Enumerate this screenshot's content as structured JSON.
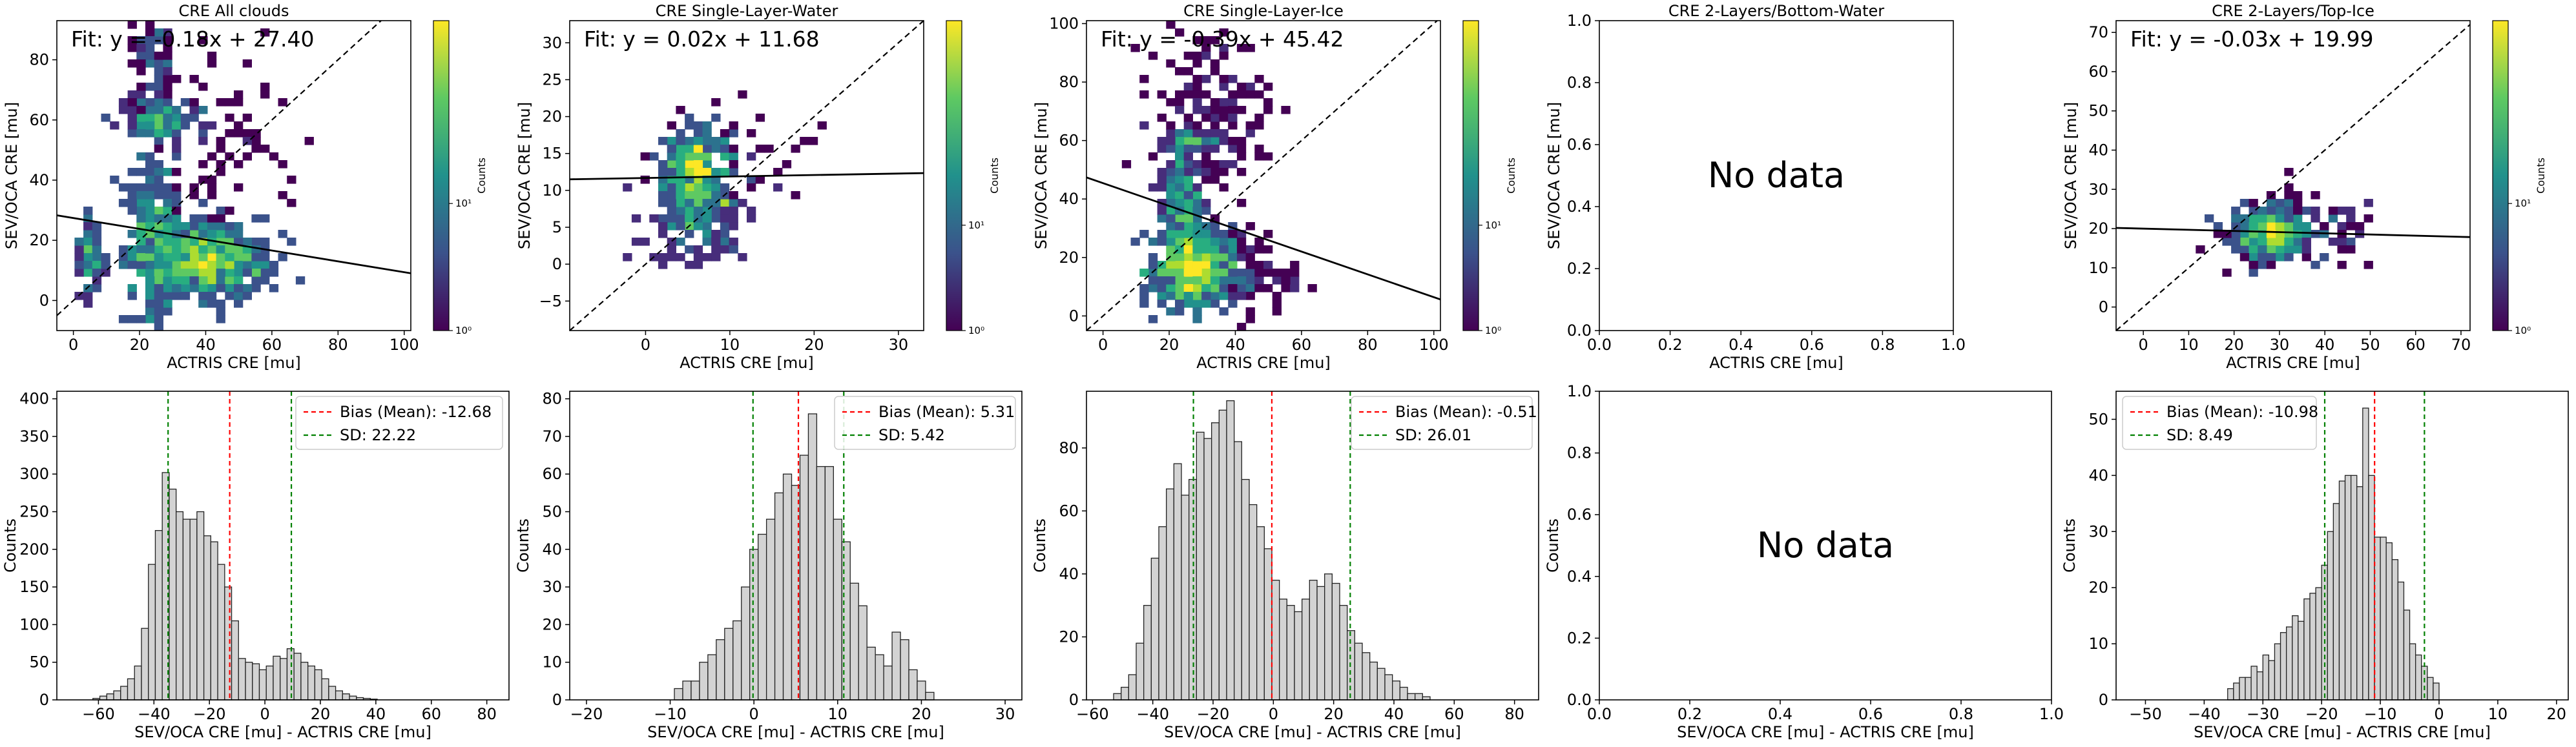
{
  "figure": {
    "xlabel_top": "ACTRIS CRE [mu]",
    "ylabel_top": "SEV/OCA CRE [mu]",
    "xlabel_bottom": "SEV/OCA CRE [mu] - ACTRIS CRE [mu]",
    "ylabel_bottom": "Counts",
    "colorbar_label": "Counts",
    "no_data": "No data"
  },
  "chart_data": [
    {
      "type": "heatmap",
      "title": "CRE All clouds",
      "fit_text": "Fit: y = -0.18x + 27.40",
      "fit": {
        "slope": -0.18,
        "intercept": 27.4
      },
      "xlim": [
        -5,
        102
      ],
      "ylim": [
        -10,
        93
      ],
      "xticks": [
        0,
        20,
        40,
        60,
        80,
        100
      ],
      "yticks": [
        0,
        20,
        40,
        60,
        80
      ],
      "colorbar": {
        "ticks": [
          "10⁰",
          "10¹"
        ],
        "label": "Counts"
      },
      "blobs": [
        {
          "cx": 40,
          "cy": 13,
          "sx": 9,
          "sy": 6,
          "w": 1.0,
          "n": 420
        },
        {
          "cx": 24,
          "cy": 20,
          "sx": 4,
          "sy": 14,
          "w": 0.8,
          "n": 230
        },
        {
          "cx": 27,
          "cy": 60,
          "sx": 6,
          "sy": 3,
          "w": 0.6,
          "n": 120
        },
        {
          "cx": 24,
          "cy": 78,
          "sx": 3,
          "sy": 10,
          "w": 0.3,
          "n": 110
        },
        {
          "cx": 5,
          "cy": 14,
          "sx": 2,
          "sy": 6,
          "w": 0.5,
          "n": 90
        },
        {
          "cx": 45,
          "cy": 55,
          "sx": 9,
          "sy": 14,
          "w": 0.15,
          "n": 70
        }
      ]
    },
    {
      "type": "heatmap",
      "title": "CRE Single-Layer-Water",
      "fit_text": "Fit: y = 0.02x + 11.68",
      "fit": {
        "slope": 0.02,
        "intercept": 11.68
      },
      "xlim": [
        -9,
        33
      ],
      "ylim": [
        -9,
        33
      ],
      "xticks": [
        0,
        10,
        20,
        30
      ],
      "yticks": [
        -5,
        0,
        5,
        10,
        15,
        20,
        25,
        30
      ],
      "colorbar": {
        "ticks": [
          "10⁰",
          "10¹"
        ],
        "label": "Counts"
      },
      "blobs": [
        {
          "cx": 6,
          "cy": 12,
          "sx": 2,
          "sy": 3.5,
          "w": 1.0,
          "n": 320
        },
        {
          "cx": 6,
          "cy": 4,
          "sx": 3,
          "sy": 2.5,
          "w": 0.4,
          "n": 90
        },
        {
          "cx": 10,
          "cy": 14,
          "sx": 4,
          "sy": 4,
          "w": 0.2,
          "n": 60
        }
      ]
    },
    {
      "type": "heatmap",
      "title": "CRE Single-Layer-Ice",
      "fit_text": "Fit: y = -0.39x + 45.42",
      "fit": {
        "slope": -0.39,
        "intercept": 45.42
      },
      "xlim": [
        -5,
        102
      ],
      "ylim": [
        -5,
        101
      ],
      "xticks": [
        0,
        20,
        40,
        60,
        80,
        100
      ],
      "yticks": [
        0,
        20,
        40,
        60,
        80,
        100
      ],
      "colorbar": {
        "ticks": [
          "10⁰",
          "10¹"
        ],
        "label": "Counts"
      },
      "blobs": [
        {
          "cx": 27,
          "cy": 16,
          "sx": 6,
          "sy": 7,
          "w": 1.0,
          "n": 420
        },
        {
          "cx": 24,
          "cy": 40,
          "sx": 3,
          "sy": 10,
          "w": 0.6,
          "n": 180
        },
        {
          "cx": 27,
          "cy": 60,
          "sx": 4,
          "sy": 2,
          "w": 0.4,
          "n": 80
        },
        {
          "cx": 32,
          "cy": 70,
          "sx": 9,
          "sy": 14,
          "w": 0.2,
          "n": 150
        },
        {
          "cx": 40,
          "cy": 15,
          "sx": 9,
          "sy": 8,
          "w": 0.2,
          "n": 110
        }
      ]
    },
    {
      "type": "empty",
      "title": "CRE 2-Layers/Bottom-Water",
      "xlim": [
        0,
        1
      ],
      "ylim": [
        0,
        1
      ],
      "xticks": [
        0.0,
        0.2,
        0.4,
        0.6,
        0.8,
        1.0
      ],
      "yticks": [
        0.0,
        0.2,
        0.4,
        0.6,
        0.8,
        1.0
      ]
    },
    {
      "type": "heatmap",
      "title": "CRE 2-Layers/Top-Ice",
      "fit_text": "Fit: y = -0.03x + 19.99",
      "fit": {
        "slope": -0.03,
        "intercept": 19.99
      },
      "xlim": [
        -6,
        72
      ],
      "ylim": [
        -6,
        73
      ],
      "xticks": [
        0,
        10,
        20,
        30,
        40,
        50,
        60,
        70
      ],
      "yticks": [
        0,
        10,
        20,
        30,
        40,
        50,
        60,
        70
      ],
      "colorbar": {
        "ticks": [
          "10⁰",
          "10¹"
        ],
        "label": "Counts"
      },
      "blobs": [
        {
          "cx": 28,
          "cy": 19,
          "sx": 4,
          "sy": 3,
          "w": 1.0,
          "n": 260
        },
        {
          "cx": 36,
          "cy": 19,
          "sx": 9,
          "sy": 5,
          "w": 0.3,
          "n": 120
        }
      ]
    },
    {
      "type": "bar",
      "subtype": "histogram",
      "xlim": [
        -75,
        88
      ],
      "ylim": [
        0,
        410
      ],
      "xticks": [
        -60,
        -40,
        -20,
        0,
        20,
        40,
        60,
        80
      ],
      "yticks": [
        0,
        50,
        100,
        150,
        200,
        250,
        300,
        350,
        400
      ],
      "bin_start": -62,
      "bin_width": 2.5,
      "values": [
        2,
        5,
        8,
        12,
        18,
        28,
        45,
        95,
        180,
        225,
        302,
        280,
        250,
        240,
        240,
        250,
        218,
        210,
        180,
        150,
        105,
        55,
        50,
        48,
        40,
        45,
        58,
        55,
        68,
        62,
        50,
        45,
        40,
        28,
        18,
        12,
        8,
        5,
        3,
        2,
        1
      ],
      "bias": -12.68,
      "sd": 22.22,
      "legend": [
        "Bias (Mean): -12.68",
        "SD: 22.22"
      ]
    },
    {
      "type": "bar",
      "subtype": "histogram",
      "xlim": [
        -22,
        32
      ],
      "ylim": [
        0,
        82
      ],
      "xticks": [
        -20,
        -10,
        0,
        10,
        20,
        30
      ],
      "yticks": [
        0,
        10,
        20,
        30,
        40,
        50,
        60,
        70,
        80
      ],
      "bin_start": -9.5,
      "bin_width": 1.0,
      "values": [
        3,
        5,
        5,
        10,
        12,
        16,
        19,
        21,
        30,
        40,
        44,
        48,
        55,
        60,
        57,
        65,
        76,
        62,
        62,
        48,
        42,
        31,
        25,
        14,
        12,
        9,
        18,
        16,
        8,
        5,
        2
      ],
      "bias": 5.31,
      "sd": 5.42,
      "legend": [
        "Bias (Mean): 5.31",
        "SD: 5.42"
      ]
    },
    {
      "type": "bar",
      "subtype": "histogram",
      "xlim": [
        -62,
        88
      ],
      "ylim": [
        0,
        98
      ],
      "xticks": [
        -60,
        -40,
        -20,
        0,
        20,
        40,
        60,
        80
      ],
      "yticks": [
        0,
        20,
        40,
        60,
        80
      ],
      "bin_start": -53,
      "bin_width": 2.5,
      "values": [
        2,
        4,
        8,
        18,
        30,
        45,
        55,
        67,
        75,
        65,
        70,
        85,
        83,
        88,
        92,
        95,
        82,
        70,
        62,
        55,
        48,
        38,
        32,
        30,
        28,
        32,
        38,
        36,
        40,
        37,
        30,
        22,
        18,
        15,
        12,
        10,
        8,
        6,
        4,
        2,
        2,
        1
      ],
      "bias": -0.51,
      "sd": 26.01,
      "legend": [
        "Bias (Mean): -0.51",
        "SD: 26.01"
      ]
    },
    {
      "type": "empty",
      "xlim": [
        0,
        1
      ],
      "ylim": [
        0,
        1
      ],
      "xticks": [
        0.0,
        0.2,
        0.4,
        0.6,
        0.8,
        1.0
      ],
      "yticks": [
        0.0,
        0.2,
        0.4,
        0.6,
        0.8,
        1.0
      ]
    },
    {
      "type": "bar",
      "subtype": "histogram",
      "xlim": [
        -55,
        22
      ],
      "ylim": [
        0,
        55
      ],
      "xticks": [
        -50,
        -40,
        -30,
        -20,
        -10,
        0,
        10,
        20
      ],
      "yticks": [
        0,
        10,
        20,
        30,
        40,
        50
      ],
      "bin_start": -36,
      "bin_width": 1.0,
      "values": [
        2,
        3,
        4,
        4,
        6,
        5,
        8,
        7,
        10,
        12,
        13,
        15,
        14,
        18,
        19,
        20,
        24,
        30,
        35,
        39,
        40,
        40,
        38,
        52,
        40,
        29,
        29,
        28,
        25,
        21,
        16,
        10,
        8,
        6,
        4,
        3
      ],
      "bias": -10.98,
      "sd": 8.49,
      "legend": [
        "Bias (Mean): -10.98",
        "SD: 8.49"
      ]
    }
  ]
}
